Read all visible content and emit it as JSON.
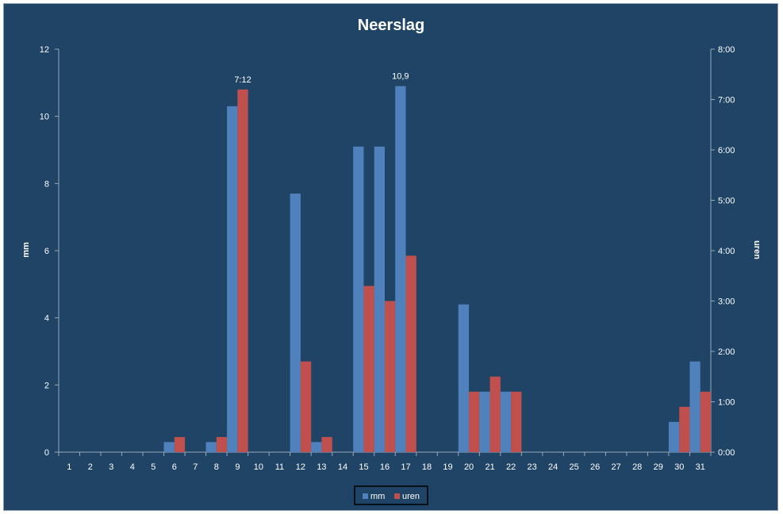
{
  "chart_data": {
    "type": "bar",
    "title": "Neerslag",
    "ylabel": "mm",
    "y2label": "uren",
    "categories": [
      "1",
      "2",
      "3",
      "4",
      "5",
      "6",
      "7",
      "8",
      "9",
      "10",
      "11",
      "12",
      "13",
      "14",
      "15",
      "16",
      "17",
      "18",
      "19",
      "20",
      "21",
      "22",
      "23",
      "24",
      "25",
      "26",
      "27",
      "28",
      "29",
      "30",
      "31"
    ],
    "ylim": [
      0,
      12
    ],
    "yticks": [
      "0",
      "2",
      "4",
      "6",
      "8",
      "10",
      "12"
    ],
    "y2lim_hours": [
      0,
      8
    ],
    "y2ticks": [
      "0:00",
      "1:00",
      "2:00",
      "3:00",
      "4:00",
      "5:00",
      "6:00",
      "7:00",
      "8:00"
    ],
    "series": [
      {
        "name": "mm",
        "axis": "left",
        "color": "#4f81bd",
        "values": [
          0,
          0,
          0,
          0,
          0,
          0.3,
          0,
          0.3,
          10.3,
          0,
          0,
          7.7,
          0.3,
          0,
          9.1,
          9.1,
          10.9,
          0,
          0,
          4.4,
          1.8,
          1.8,
          0,
          0,
          0,
          0,
          0,
          0,
          0,
          0.9,
          2.7
        ]
      },
      {
        "name": "uren",
        "axis": "right",
        "unit": "hours",
        "color": "#c0504d",
        "values": [
          0,
          0,
          0,
          0,
          0,
          0.3,
          0,
          0.3,
          7.2,
          0,
          0,
          1.8,
          0.3,
          0,
          3.3,
          3.0,
          3.9,
          0,
          0,
          1.2,
          1.5,
          1.2,
          0,
          0,
          0,
          0,
          0,
          0,
          0,
          0.9,
          1.2
        ]
      }
    ],
    "data_labels": [
      {
        "series": "uren",
        "category": "9",
        "text": "7:12"
      },
      {
        "series": "mm",
        "category": "17",
        "text": "10,9"
      }
    ],
    "legend": {
      "position": "bottom",
      "entries": [
        "mm",
        "uren"
      ]
    },
    "grid": false
  }
}
